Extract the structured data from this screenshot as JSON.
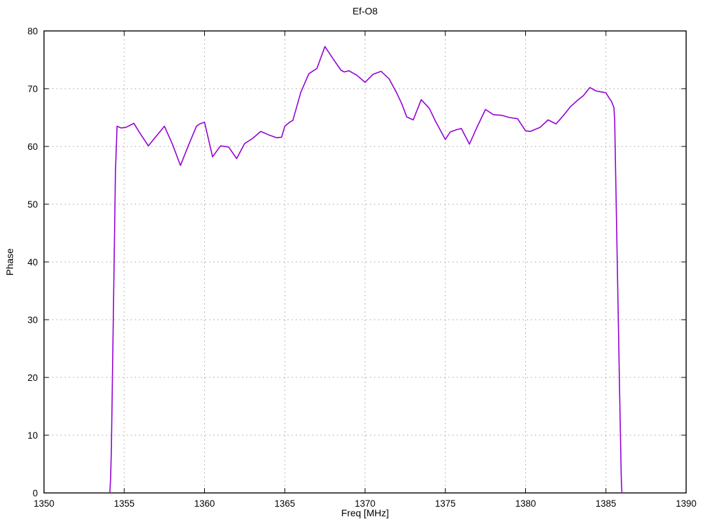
{
  "window": {
    "background": "#ffffff"
  },
  "chart_data": {
    "type": "line",
    "title": "Ef-O8",
    "xlabel": "Freq [MHz]",
    "ylabel": "Phase",
    "xlim": [
      1350,
      1390
    ],
    "ylim": [
      0,
      80
    ],
    "xticks": [
      1350,
      1355,
      1360,
      1365,
      1370,
      1375,
      1380,
      1385,
      1390
    ],
    "yticks": [
      0,
      10,
      20,
      30,
      40,
      50,
      60,
      70,
      80
    ],
    "grid": true,
    "grid_style": "dashed",
    "grid_color": "#b5b5b5",
    "border_color": "#000000",
    "legend": "none",
    "line_color": "#9400d3",
    "series": [
      {
        "name": "phase",
        "points": [
          [
            1354.1,
            0
          ],
          [
            1354.15,
            2.5
          ],
          [
            1354.2,
            8
          ],
          [
            1354.45,
            55.5
          ],
          [
            1354.55,
            63.5
          ],
          [
            1354.8,
            63.2
          ],
          [
            1355.1,
            63.3
          ],
          [
            1355.6,
            64.0
          ],
          [
            1356.0,
            62.2
          ],
          [
            1356.5,
            60.1
          ],
          [
            1357.0,
            61.8
          ],
          [
            1357.5,
            63.5
          ],
          [
            1358.0,
            60.4
          ],
          [
            1358.5,
            56.7
          ],
          [
            1359.0,
            60.2
          ],
          [
            1359.5,
            63.5
          ],
          [
            1359.7,
            63.9
          ],
          [
            1360.0,
            64.2
          ],
          [
            1360.5,
            58.2
          ],
          [
            1361.0,
            60.1
          ],
          [
            1361.5,
            59.9
          ],
          [
            1362.0,
            57.9
          ],
          [
            1362.5,
            60.5
          ],
          [
            1363.0,
            61.4
          ],
          [
            1363.5,
            62.6
          ],
          [
            1364.0,
            62.0
          ],
          [
            1364.5,
            61.5
          ],
          [
            1364.8,
            61.6
          ],
          [
            1365.0,
            63.5
          ],
          [
            1365.3,
            64.2
          ],
          [
            1365.5,
            64.5
          ],
          [
            1366.0,
            69.4
          ],
          [
            1366.5,
            72.6
          ],
          [
            1367.0,
            73.5
          ],
          [
            1367.5,
            77.3
          ],
          [
            1368.0,
            75.2
          ],
          [
            1368.5,
            73.2
          ],
          [
            1368.7,
            72.9
          ],
          [
            1369.0,
            73.1
          ],
          [
            1369.5,
            72.3
          ],
          [
            1370.0,
            71.1
          ],
          [
            1370.5,
            72.5
          ],
          [
            1371.0,
            73.0
          ],
          [
            1371.5,
            71.7
          ],
          [
            1372.0,
            69.1
          ],
          [
            1372.3,
            67.3
          ],
          [
            1372.6,
            65.1
          ],
          [
            1373.0,
            64.6
          ],
          [
            1373.5,
            68.1
          ],
          [
            1374.0,
            66.6
          ],
          [
            1374.4,
            64.3
          ],
          [
            1375.0,
            61.2
          ],
          [
            1375.3,
            62.5
          ],
          [
            1375.7,
            62.9
          ],
          [
            1376.0,
            63.1
          ],
          [
            1376.5,
            60.4
          ],
          [
            1377.0,
            63.5
          ],
          [
            1377.5,
            66.4
          ],
          [
            1378.0,
            65.5
          ],
          [
            1378.5,
            65.4
          ],
          [
            1379.0,
            65.0
          ],
          [
            1379.5,
            64.8
          ],
          [
            1380.0,
            62.7
          ],
          [
            1380.3,
            62.6
          ],
          [
            1380.9,
            63.3
          ],
          [
            1381.4,
            64.6
          ],
          [
            1381.9,
            63.9
          ],
          [
            1382.4,
            65.5
          ],
          [
            1382.8,
            66.9
          ],
          [
            1383.2,
            67.9
          ],
          [
            1383.6,
            68.8
          ],
          [
            1384.0,
            70.2
          ],
          [
            1384.4,
            69.6
          ],
          [
            1384.8,
            69.4
          ],
          [
            1385.0,
            69.3
          ],
          [
            1385.2,
            68.4
          ],
          [
            1385.35,
            67.8
          ],
          [
            1385.45,
            67.1
          ],
          [
            1385.5,
            66.8
          ],
          [
            1385.55,
            64.5
          ],
          [
            1385.88,
            14.0
          ],
          [
            1385.92,
            8.3
          ],
          [
            1385.96,
            2.5
          ],
          [
            1386.0,
            0
          ]
        ]
      }
    ]
  }
}
